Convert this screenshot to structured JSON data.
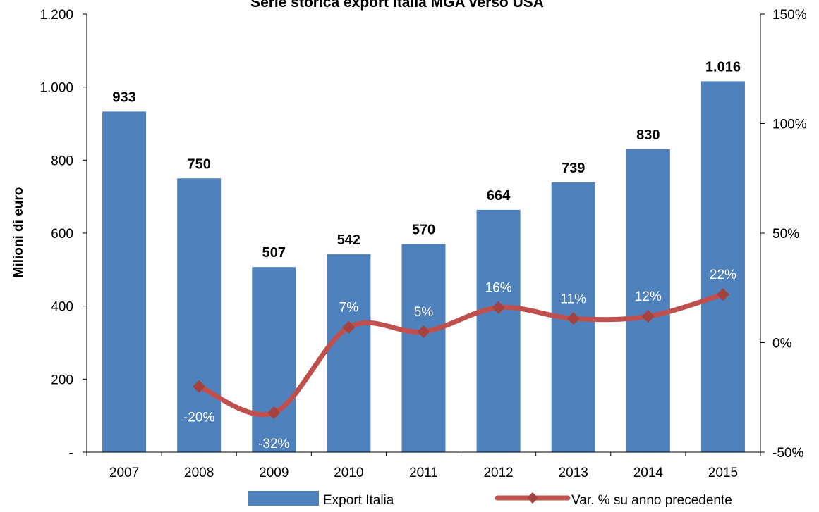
{
  "colors": {
    "bar": "#4F81BD",
    "line": "#C0504D",
    "marker": "#A5423F",
    "axis": "#000000",
    "inner_label": "#ffffff",
    "background": "#ffffff"
  },
  "chart_data": {
    "type": "bar",
    "title": "Serie storica export Italia MGA verso USA",
    "categories": [
      "2007",
      "2008",
      "2009",
      "2010",
      "2011",
      "2012",
      "2013",
      "2014",
      "2015"
    ],
    "series": [
      {
        "name": "Export Italia",
        "type": "bar",
        "axis": "left",
        "values": [
          933,
          750,
          507,
          542,
          570,
          664,
          739,
          830,
          1016
        ],
        "labels": [
          "933",
          "750",
          "507",
          "542",
          "570",
          "664",
          "739",
          "830",
          "1.016"
        ]
      },
      {
        "name": "Var. % su anno precedente",
        "type": "line",
        "axis": "right",
        "values": [
          null,
          -20,
          -32,
          7,
          5,
          16,
          11,
          12,
          22
        ],
        "labels": [
          "",
          "-20%",
          "-32%",
          "7%",
          "5%",
          "16%",
          "11%",
          "12%",
          "22%"
        ]
      }
    ],
    "ylabel": "Milioni di euro",
    "xlabel": "",
    "ylim": [
      0,
      1200
    ],
    "y_ticks": [
      "-",
      "200",
      "400",
      "600",
      "800",
      "1.000",
      "1.200"
    ],
    "y2lim": [
      -50,
      150
    ],
    "y2_ticks": [
      "-50%",
      "0%",
      "50%",
      "100%",
      "150%"
    ],
    "grid": false,
    "legend": "bottom"
  }
}
